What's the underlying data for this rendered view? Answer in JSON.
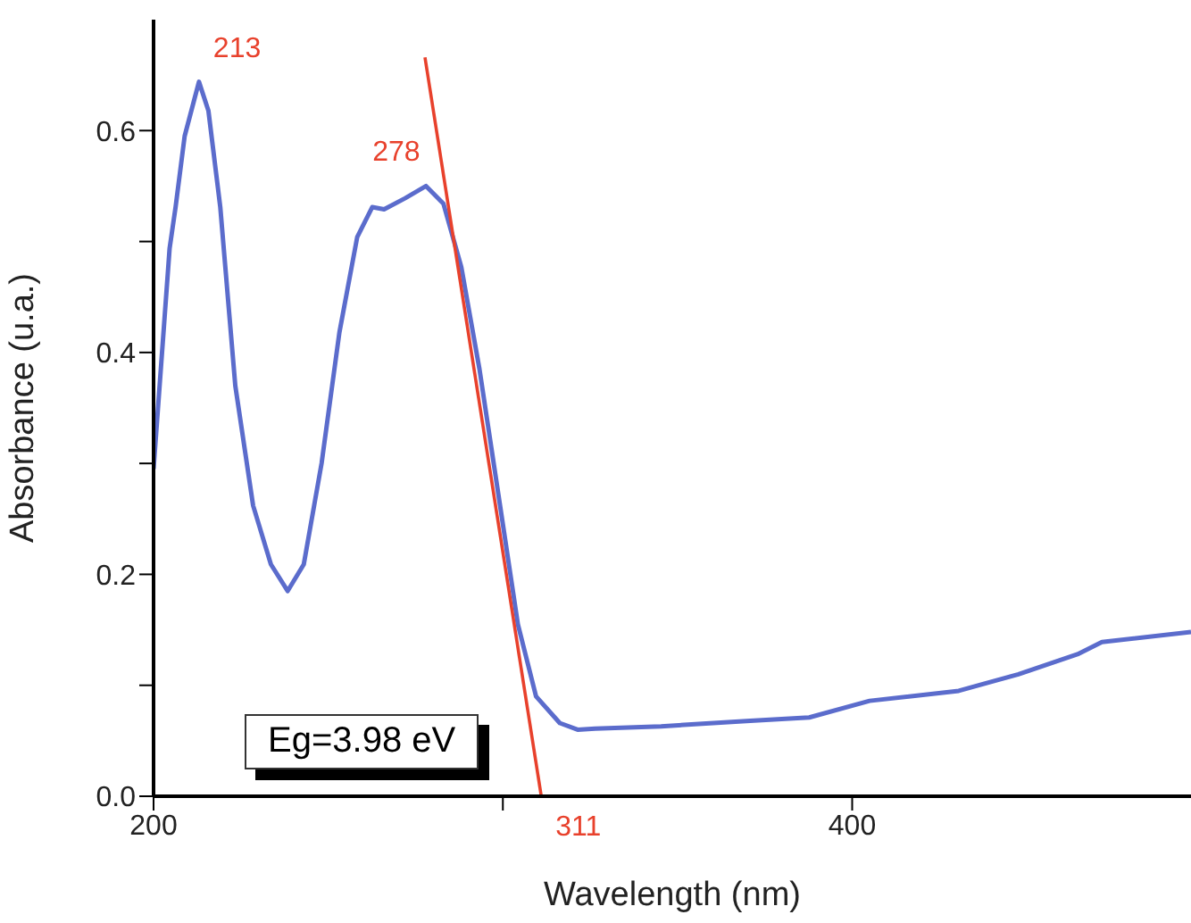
{
  "chart_data": {
    "type": "line",
    "xlabel": "Wavelength (nm)",
    "ylabel": "Absorbance (u.a.)",
    "xlim": [
      200,
      497
    ],
    "ylim": [
      0,
      0.7
    ],
    "xticks": [
      200,
      {
        "value": 300,
        "label": null
      },
      400
    ],
    "yticks": [
      {
        "value": 0,
        "label": "0.0"
      },
      {
        "value": 0.1,
        "label": null
      },
      {
        "value": 0.2,
        "label": "0.2"
      },
      {
        "value": 0.3,
        "label": null
      },
      {
        "value": 0.4,
        "label": "0.4"
      },
      {
        "value": 0.5,
        "label": null
      },
      {
        "value": 0.6,
        "label": "0.6"
      }
    ],
    "marker": "none",
    "line_style": "solid",
    "series": [
      {
        "color": "#5b6ccc",
        "x": [
          200,
          204.6,
          206.3,
          208.9,
          213,
          215.7,
          219.1,
          223.4,
          228.5,
          233.6,
          238.4,
          243,
          248.1,
          253.2,
          258.3,
          262.6,
          266,
          272,
          278,
          283,
          288.1,
          293.3,
          299.2,
          304.3,
          309.5,
          316.3,
          321.4,
          326.4,
          345.3,
          370.8,
          387.7,
          405,
          430.5,
          447.6,
          464.5,
          471.5,
          497
        ],
        "values": [
          0.295,
          0.494,
          0.531,
          0.595,
          0.644,
          0.618,
          0.531,
          0.37,
          0.262,
          0.209,
          0.185,
          0.209,
          0.3,
          0.418,
          0.504,
          0.531,
          0.529,
          0.539,
          0.55,
          0.534,
          0.477,
          0.385,
          0.262,
          0.155,
          0.09,
          0.066,
          0.06,
          0.061,
          0.063,
          0.068,
          0.071,
          0.086,
          0.095,
          0.11,
          0.128,
          0.139,
          0.148
        ]
      },
      {
        "type": "line",
        "color": "#e8412c",
        "x": [
          277.7,
          311
        ],
        "values": [
          0.666,
          0
        ]
      }
    ],
    "annotations": [
      {
        "text": "213",
        "x": 213,
        "y": 0.644
      },
      {
        "text": "278",
        "x": 278,
        "y": 0.55
      },
      {
        "text": "311",
        "x": 311,
        "y": 0
      },
      "Eg=3.98 eV"
    ]
  }
}
